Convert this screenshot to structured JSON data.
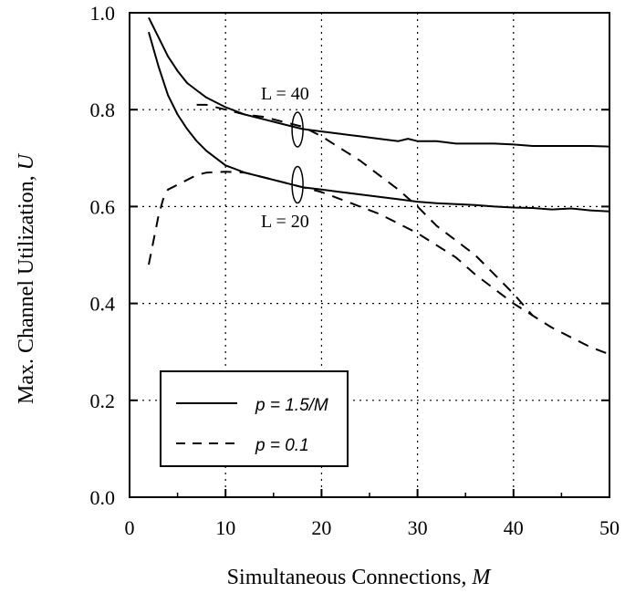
{
  "chart_data": {
    "type": "line",
    "xlabel": "Simultaneous Connections, ",
    "xlabel_var": "M",
    "ylabel": "Max. Channel Utilization, ",
    "ylabel_var": "U",
    "xlim": [
      0,
      50
    ],
    "ylim": [
      0,
      1.0
    ],
    "x_ticks": [
      "0",
      "10",
      "20",
      "30",
      "40",
      "50"
    ],
    "y_ticks": [
      "0.0",
      "0.2",
      "0.4",
      "0.6",
      "0.8",
      "1.0"
    ],
    "grid": true,
    "grid_style": "dotted",
    "legend_position": "bottom-left",
    "legend": [
      {
        "label": "p = 1.5/M",
        "style": "solid"
      },
      {
        "label": "p = 0.1",
        "style": "dashed"
      }
    ],
    "annotations": [
      {
        "text": "L = 40",
        "x": 17.5,
        "y": 0.76
      },
      {
        "text": "L = 20",
        "x": 17.5,
        "y": 0.64
      }
    ],
    "series": [
      {
        "legend": "p = 1.5/M",
        "group": "L = 40",
        "style": "solid",
        "x": [
          2,
          3,
          4,
          5,
          6,
          7,
          8,
          10,
          12,
          14,
          16,
          18,
          20,
          22,
          24,
          26,
          28,
          29,
          30,
          32,
          34,
          36,
          38,
          40,
          42,
          44,
          46,
          48,
          50
        ],
        "y": [
          0.99,
          0.95,
          0.91,
          0.88,
          0.855,
          0.84,
          0.825,
          0.805,
          0.79,
          0.78,
          0.77,
          0.76,
          0.755,
          0.75,
          0.745,
          0.74,
          0.735,
          0.74,
          0.735,
          0.735,
          0.73,
          0.73,
          0.73,
          0.728,
          0.725,
          0.725,
          0.725,
          0.725,
          0.724
        ]
      },
      {
        "legend": "p = 1.5/M",
        "group": "L = 20",
        "style": "solid",
        "x": [
          2,
          3,
          4,
          5,
          6,
          7,
          8,
          10,
          12,
          14,
          16,
          18,
          20,
          22,
          24,
          26,
          28,
          30,
          32,
          34,
          36,
          38,
          40,
          42,
          44,
          46,
          48,
          50
        ],
        "y": [
          0.96,
          0.89,
          0.83,
          0.79,
          0.76,
          0.735,
          0.715,
          0.685,
          0.67,
          0.66,
          0.65,
          0.64,
          0.635,
          0.63,
          0.625,
          0.62,
          0.615,
          0.61,
          0.607,
          0.605,
          0.603,
          0.6,
          0.598,
          0.597,
          0.594,
          0.596,
          0.592,
          0.59
        ]
      },
      {
        "legend": "p = 0.1",
        "group": "L = 40",
        "style": "dashed",
        "x": [
          7,
          8,
          10,
          12,
          14,
          16,
          18,
          20,
          22,
          24,
          26,
          28,
          30,
          32,
          34,
          36,
          38,
          40,
          42
        ],
        "y": [
          0.81,
          0.81,
          0.8,
          0.79,
          0.785,
          0.775,
          0.765,
          0.745,
          0.72,
          0.695,
          0.665,
          0.635,
          0.6,
          0.56,
          0.53,
          0.5,
          0.46,
          0.42,
          0.375
        ]
      },
      {
        "legend": "p = 0.1",
        "group": "L = 20",
        "style": "dashed",
        "x": [
          2,
          2.5,
          3,
          3.5,
          4,
          5,
          6,
          7,
          8,
          10,
          12,
          14,
          16,
          18,
          20,
          22,
          24,
          26,
          28,
          30,
          32,
          34,
          36,
          38,
          40,
          42,
          44,
          46,
          48,
          50
        ],
        "y": [
          0.48,
          0.53,
          0.58,
          0.615,
          0.635,
          0.645,
          0.655,
          0.665,
          0.67,
          0.672,
          0.67,
          0.66,
          0.65,
          0.64,
          0.63,
          0.615,
          0.6,
          0.585,
          0.565,
          0.545,
          0.52,
          0.495,
          0.46,
          0.43,
          0.4,
          0.375,
          0.35,
          0.33,
          0.31,
          0.295
        ]
      }
    ]
  }
}
